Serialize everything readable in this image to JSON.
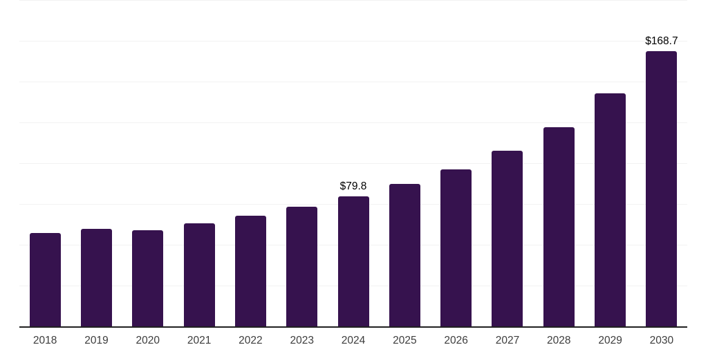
{
  "chart_data": {
    "type": "bar",
    "title": "",
    "xlabel": "",
    "ylabel": "",
    "categories": [
      "2018",
      "2019",
      "2020",
      "2021",
      "2022",
      "2023",
      "2024",
      "2025",
      "2026",
      "2027",
      "2028",
      "2029",
      "2030"
    ],
    "values": [
      57.0,
      59.7,
      58.9,
      63.3,
      68.0,
      73.5,
      79.8,
      87.4,
      96.3,
      107.7,
      122.0,
      142.7,
      168.7
    ],
    "data_labels": [
      null,
      null,
      null,
      null,
      null,
      null,
      "$79.8",
      null,
      null,
      null,
      null,
      null,
      "$168.7"
    ],
    "ylim": [
      0,
      200
    ],
    "gridline_step": 25,
    "grid": true,
    "legend": "none",
    "colors": {
      "bar": "#36124E",
      "axis_line": "#212121",
      "gridline": "#f2f2f2",
      "tick_label": "#3d3d3d",
      "data_label": "#000000",
      "background": "#ffffff"
    }
  }
}
